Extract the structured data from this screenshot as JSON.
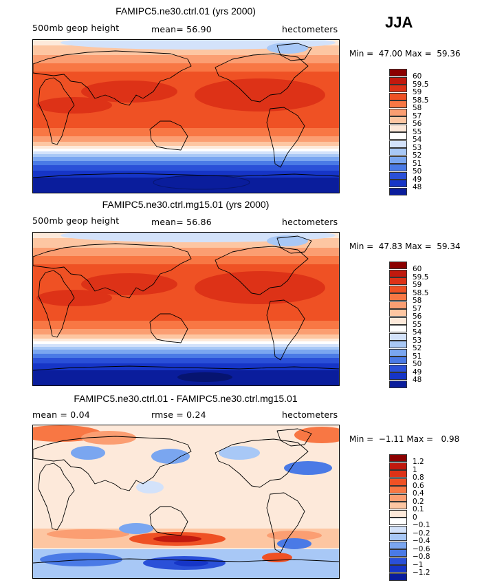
{
  "season": "JJA",
  "panels": [
    {
      "title": "FAMIPC5.ne30.ctrl.01 (yrs 2000)",
      "left_label": "500mb geop height",
      "center_label": "mean=  56.90",
      "right_label": "hectometers",
      "minmax": "Min =  47.00 Max =  59.36",
      "kind": "abs",
      "colorbar": {
        "labels": [
          "60",
          "59.5",
          "59",
          "58.5",
          "58",
          "57",
          "56",
          "55",
          "54",
          "53",
          "52",
          "51",
          "50",
          "49",
          "48"
        ],
        "colors": [
          "#8b0000",
          "#c1190e",
          "#dd3217",
          "#ef5124",
          "#f87744",
          "#fb9e72",
          "#fdc6a2",
          "#fde9da",
          "#ffffff",
          "#d3e2fa",
          "#a8c8f6",
          "#7aa6f0",
          "#4a7ae6",
          "#2a50d8",
          "#1635c7",
          "#0a1d9c"
        ]
      }
    },
    {
      "title": "FAMIPC5.ne30.ctrl.mg15.01 (yrs 2000)",
      "left_label": "500mb geop height",
      "center_label": "mean=  56.86",
      "right_label": "hectometers",
      "minmax": "Min =  47.83 Max =  59.34",
      "kind": "abs",
      "colorbar": {
        "labels": [
          "60",
          "59.5",
          "59",
          "58.5",
          "58",
          "57",
          "56",
          "55",
          "54",
          "53",
          "52",
          "51",
          "50",
          "49",
          "48"
        ],
        "colors": [
          "#8b0000",
          "#c1190e",
          "#dd3217",
          "#ef5124",
          "#f87744",
          "#fb9e72",
          "#fdc6a2",
          "#fde9da",
          "#ffffff",
          "#d3e2fa",
          "#a8c8f6",
          "#7aa6f0",
          "#4a7ae6",
          "#2a50d8",
          "#1635c7",
          "#0a1d9c"
        ]
      }
    },
    {
      "title": "FAMIPC5.ne30.ctrl.01 - FAMIPC5.ne30.ctrl.mg15.01",
      "left_label": "mean =   0.04",
      "center_label": "rmse =   0.24",
      "right_label": "hectometers",
      "minmax": "Min =  −1.11 Max =   0.98",
      "kind": "diff",
      "colorbar": {
        "labels": [
          "1.2",
          "1",
          "0.8",
          "0.6",
          "0.4",
          "0.2",
          "0.1",
          "0",
          "−0.1",
          "−0.2",
          "−0.4",
          "−0.6",
          "−0.8",
          "−1",
          "−1.2"
        ],
        "colors": [
          "#8b0000",
          "#c1190e",
          "#dd3217",
          "#ef5124",
          "#f87744",
          "#fb9e72",
          "#fdc6a2",
          "#fde9da",
          "#ffffff",
          "#d3e2fa",
          "#a8c8f6",
          "#7aa6f0",
          "#4a7ae6",
          "#2a50d8",
          "#1635c7",
          "#0a1d9c"
        ]
      }
    }
  ]
}
